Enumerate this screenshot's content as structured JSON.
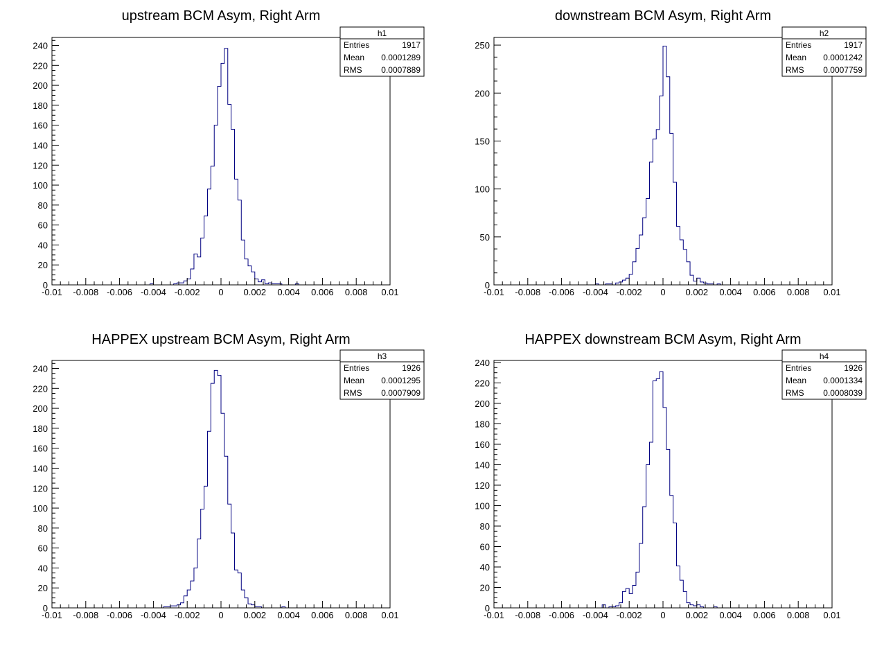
{
  "colors": {
    "histogram_line": "#000080",
    "axis": "#000000",
    "background": "#ffffff"
  },
  "chart_data": [
    {
      "type": "histogram",
      "title": "upstream BCM Asym, Right Arm",
      "xlim": [
        -0.01,
        0.01
      ],
      "ylim": [
        0,
        248
      ],
      "x_ticks": [
        "-0.01",
        "-0.008",
        "-0.006",
        "-0.004",
        "-0.002",
        "0",
        "0.002",
        "0.004",
        "0.006",
        "0.008",
        "0.01"
      ],
      "y_ticks": [
        "0",
        "20",
        "40",
        "60",
        "80",
        "100",
        "120",
        "140",
        "160",
        "180",
        "200",
        "220",
        "240"
      ],
      "bin_width": 0.0002,
      "bin_edges_start": -0.0042,
      "bin_counts": [
        1,
        0,
        0,
        0,
        0,
        0,
        0,
        1,
        2,
        2,
        4,
        6,
        16,
        31,
        28,
        47,
        69,
        96,
        119,
        160,
        199,
        222,
        237,
        181,
        156,
        106,
        85,
        45,
        26,
        19,
        13,
        6,
        3,
        5,
        1,
        2,
        1,
        1,
        1,
        0,
        0,
        0,
        0,
        1
      ],
      "stats": {
        "name": "h1",
        "rows": [
          [
            "Entries",
            "1917"
          ],
          [
            "Mean",
            "0.0001289"
          ],
          [
            "RMS",
            "0.0007889"
          ]
        ]
      }
    },
    {
      "type": "histogram",
      "title": "downstream BCM Asym, Right Arm",
      "xlim": [
        -0.01,
        0.01
      ],
      "ylim": [
        0,
        258
      ],
      "x_ticks": [
        "-0.01",
        "-0.008",
        "-0.006",
        "-0.004",
        "-0.002",
        "0",
        "0.002",
        "0.004",
        "0.006",
        "0.008",
        "0.01"
      ],
      "y_ticks": [
        "0",
        "50",
        "100",
        "150",
        "200",
        "250"
      ],
      "bin_width": 0.0002,
      "bin_edges_start": -0.004,
      "bin_counts": [
        1,
        0,
        0,
        1,
        1,
        0,
        2,
        3,
        5,
        7,
        11,
        24,
        38,
        52,
        70,
        90,
        128,
        152,
        162,
        197,
        249,
        217,
        158,
        107,
        61,
        47,
        37,
        24,
        10,
        4,
        7,
        3,
        2,
        1,
        1,
        0,
        1
      ],
      "stats": {
        "name": "h2",
        "rows": [
          [
            "Entries",
            "1917"
          ],
          [
            "Mean",
            "0.0001242"
          ],
          [
            "RMS",
            "0.0007759"
          ]
        ]
      }
    },
    {
      "type": "histogram",
      "title": "HAPPEX upstream BCM Asym, Right Arm",
      "xlim": [
        -0.01,
        0.01
      ],
      "ylim": [
        0,
        248
      ],
      "x_ticks": [
        "-0.01",
        "-0.008",
        "-0.006",
        "-0.004",
        "-0.002",
        "0",
        "0.002",
        "0.004",
        "0.006",
        "0.008",
        "0.01"
      ],
      "y_ticks": [
        "0",
        "20",
        "40",
        "60",
        "80",
        "100",
        "120",
        "140",
        "160",
        "180",
        "200",
        "220",
        "240"
      ],
      "bin_width": 0.0002,
      "bin_edges_start": -0.0034,
      "bin_counts": [
        1,
        1,
        2,
        2,
        3,
        5,
        12,
        18,
        27,
        40,
        69,
        99,
        122,
        177,
        225,
        238,
        233,
        195,
        152,
        104,
        75,
        38,
        35,
        18,
        10,
        4,
        3,
        1,
        1,
        0,
        0,
        0,
        0,
        0,
        0,
        1
      ],
      "stats": {
        "name": "h3",
        "rows": [
          [
            "Entries",
            "1926"
          ],
          [
            "Mean",
            "0.0001295"
          ],
          [
            "RMS",
            "0.0007909"
          ]
        ]
      }
    },
    {
      "type": "histogram",
      "title": "HAPPEX downstream BCM Asym, Right Arm",
      "xlim": [
        -0.01,
        0.01
      ],
      "ylim": [
        0,
        242
      ],
      "x_ticks": [
        "-0.01",
        "-0.008",
        "-0.006",
        "-0.004",
        "-0.002",
        "0",
        "0.002",
        "0.004",
        "0.006",
        "0.008",
        "0.01"
      ],
      "y_ticks": [
        "0",
        "20",
        "40",
        "60",
        "80",
        "100",
        "120",
        "140",
        "160",
        "180",
        "200",
        "220",
        "240"
      ],
      "bin_width": 0.0002,
      "bin_edges_start": -0.0036,
      "bin_counts": [
        3,
        0,
        1,
        1,
        2,
        5,
        16,
        19,
        14,
        22,
        35,
        63,
        99,
        140,
        162,
        222,
        224,
        231,
        196,
        155,
        110,
        83,
        41,
        27,
        16,
        5,
        3,
        2,
        3,
        1,
        0,
        0,
        0,
        1
      ],
      "stats": {
        "name": "h4",
        "rows": [
          [
            "Entries",
            "1926"
          ],
          [
            "Mean",
            "0.0001334"
          ],
          [
            "RMS",
            "0.0008039"
          ]
        ]
      }
    }
  ]
}
